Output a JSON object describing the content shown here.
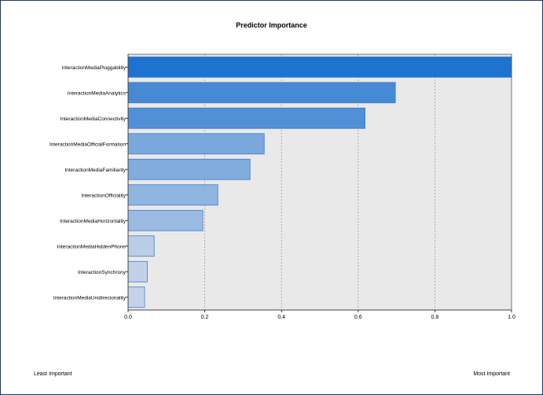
{
  "chart_data": {
    "type": "bar",
    "orientation": "horizontal",
    "title": "Predictor Importance",
    "categories": [
      "InteractionMediaPluggability",
      "InteractionMediaAnalytics",
      "InteractionMediaConnectivity",
      "InteractionMediaOfficialFormation",
      "InteractionMediaFamiliarity",
      "InteractionOfficiality",
      "InteractionMediaHorizontality",
      "InteractionMediaHiddenPhone",
      "InteractionSynchrony",
      "InteractionMediaUnidirecionality"
    ],
    "values": [
      1.0,
      0.697,
      0.618,
      0.355,
      0.318,
      0.234,
      0.195,
      0.068,
      0.05,
      0.043
    ],
    "xlim": [
      0,
      1.0
    ],
    "xticks": [
      "0.0",
      "0.2",
      "0.4",
      "0.6",
      "0.8",
      "1.0"
    ],
    "grid": true,
    "xlabel": "",
    "ylabel": ""
  },
  "footer": {
    "least_label": "Least Important",
    "most_label": "Most Important"
  }
}
